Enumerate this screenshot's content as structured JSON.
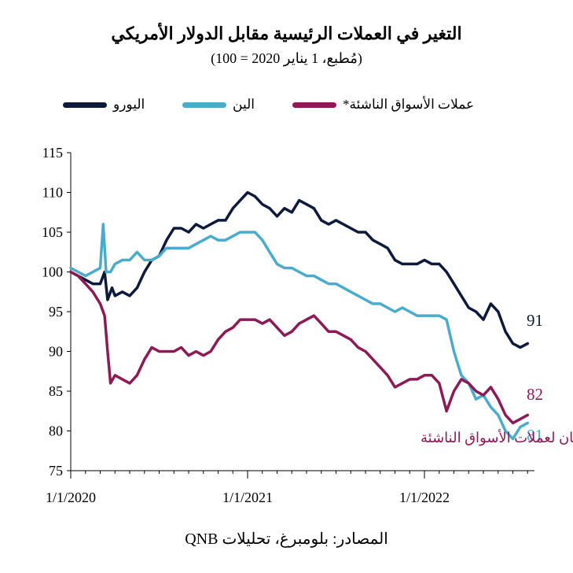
{
  "title": "التغير في العملات الرئيسية مقابل الدولار الأمريكي",
  "subtitle": "(مُطبع، 1 يناير 2020 = 100)",
  "source": "المصادر: بلومبرغ، تحليلات QNB",
  "legend": [
    {
      "label": "اليورو",
      "color": "#0e1a3c"
    },
    {
      "label": "الين",
      "color": "#4aaccc"
    },
    {
      "label": "عملات الأسواق الناشئة*",
      "color": "#8b1a55"
    }
  ],
  "chart_data": {
    "type": "line",
    "ylim": [
      75,
      115
    ],
    "yticks": [
      "75",
      "80",
      "85",
      "90",
      "95",
      "100",
      "105",
      "110",
      "115"
    ],
    "xticks": [
      {
        "label": "1/1/2020",
        "t": 0
      },
      {
        "label": "1/1/2021",
        "t": 12
      },
      {
        "label": "1/1/2022",
        "t": 24
      }
    ],
    "xlim_months": [
      0,
      31
    ],
    "note": "*مؤشر جي بي مورغان لعملات الأسواق الناشئة",
    "series": [
      {
        "name": "اليورو",
        "color": "#0e1a3c",
        "end_label": "91",
        "points": [
          [
            0,
            100
          ],
          [
            0.5,
            99.5
          ],
          [
            1,
            99
          ],
          [
            1.5,
            98.5
          ],
          [
            2,
            98.5
          ],
          [
            2.3,
            100
          ],
          [
            2.5,
            96.5
          ],
          [
            2.8,
            98
          ],
          [
            3,
            97
          ],
          [
            3.5,
            97.5
          ],
          [
            4,
            97
          ],
          [
            4.5,
            98
          ],
          [
            5,
            100
          ],
          [
            5.5,
            101.5
          ],
          [
            6,
            102
          ],
          [
            6.5,
            104
          ],
          [
            7,
            105.5
          ],
          [
            7.5,
            105.5
          ],
          [
            8,
            105
          ],
          [
            8.5,
            106
          ],
          [
            9,
            105.5
          ],
          [
            9.5,
            106
          ],
          [
            10,
            106.5
          ],
          [
            10.5,
            106.5
          ],
          [
            11,
            108
          ],
          [
            11.5,
            109
          ],
          [
            12,
            110
          ],
          [
            12.5,
            109.5
          ],
          [
            13,
            108.5
          ],
          [
            13.5,
            108
          ],
          [
            14,
            107
          ],
          [
            14.5,
            108
          ],
          [
            15,
            107.5
          ],
          [
            15.5,
            109
          ],
          [
            16,
            108.5
          ],
          [
            16.5,
            108
          ],
          [
            17,
            106.5
          ],
          [
            17.5,
            106
          ],
          [
            18,
            106.5
          ],
          [
            18.5,
            106
          ],
          [
            19,
            105.5
          ],
          [
            19.5,
            105
          ],
          [
            20,
            105
          ],
          [
            20.5,
            104
          ],
          [
            21,
            103.5
          ],
          [
            21.5,
            103
          ],
          [
            22,
            101.5
          ],
          [
            22.5,
            101
          ],
          [
            23,
            101
          ],
          [
            23.5,
            101
          ],
          [
            24,
            101.5
          ],
          [
            24.5,
            101
          ],
          [
            25,
            101
          ],
          [
            25.5,
            100
          ],
          [
            26,
            98.5
          ],
          [
            26.5,
            97
          ],
          [
            27,
            95.5
          ],
          [
            27.5,
            95
          ],
          [
            28,
            94
          ],
          [
            28.5,
            96
          ],
          [
            29,
            95
          ],
          [
            29.5,
            92.5
          ],
          [
            30,
            91
          ],
          [
            30.5,
            90.5
          ],
          [
            31,
            91
          ]
        ]
      },
      {
        "name": "الين",
        "color": "#4aaccc",
        "end_label": "81",
        "points": [
          [
            0,
            100.5
          ],
          [
            0.5,
            100
          ],
          [
            1,
            99.5
          ],
          [
            1.5,
            100
          ],
          [
            2,
            100.5
          ],
          [
            2.2,
            106
          ],
          [
            2.4,
            100
          ],
          [
            2.7,
            100
          ],
          [
            3,
            101
          ],
          [
            3.5,
            101.5
          ],
          [
            4,
            101.5
          ],
          [
            4.5,
            102.5
          ],
          [
            5,
            101.5
          ],
          [
            5.5,
            101.5
          ],
          [
            6,
            102
          ],
          [
            6.5,
            103
          ],
          [
            7,
            103
          ],
          [
            7.5,
            103
          ],
          [
            8,
            103
          ],
          [
            8.5,
            103.5
          ],
          [
            9,
            104
          ],
          [
            9.5,
            104.5
          ],
          [
            10,
            104
          ],
          [
            10.5,
            104
          ],
          [
            11,
            104.5
          ],
          [
            11.5,
            105
          ],
          [
            12,
            105
          ],
          [
            12.5,
            105
          ],
          [
            13,
            104
          ],
          [
            13.5,
            102.5
          ],
          [
            14,
            101
          ],
          [
            14.5,
            100.5
          ],
          [
            15,
            100.5
          ],
          [
            15.5,
            100
          ],
          [
            16,
            99.5
          ],
          [
            16.5,
            99.5
          ],
          [
            17,
            99
          ],
          [
            17.5,
            98.5
          ],
          [
            18,
            98.5
          ],
          [
            18.5,
            98
          ],
          [
            19,
            97.5
          ],
          [
            19.5,
            97
          ],
          [
            20,
            96.5
          ],
          [
            20.5,
            96
          ],
          [
            21,
            96
          ],
          [
            21.5,
            95.5
          ],
          [
            22,
            95
          ],
          [
            22.5,
            95.5
          ],
          [
            23,
            95
          ],
          [
            23.5,
            94.5
          ],
          [
            24,
            94.5
          ],
          [
            24.5,
            94.5
          ],
          [
            25,
            94.5
          ],
          [
            25.5,
            94
          ],
          [
            26,
            90
          ],
          [
            26.5,
            87
          ],
          [
            27,
            86
          ],
          [
            27.5,
            84
          ],
          [
            28,
            84.5
          ],
          [
            28.5,
            83
          ],
          [
            29,
            82
          ],
          [
            29.5,
            80
          ],
          [
            30,
            79
          ],
          [
            30.5,
            80.5
          ],
          [
            31,
            81
          ]
        ]
      },
      {
        "name": "عملات الأسواق الناشئة*",
        "color": "#8b1a55",
        "end_label": "82",
        "points": [
          [
            0,
            100
          ],
          [
            0.5,
            99.5
          ],
          [
            1,
            98.5
          ],
          [
            1.5,
            97.5
          ],
          [
            2,
            96
          ],
          [
            2.3,
            94.5
          ],
          [
            2.5,
            90
          ],
          [
            2.7,
            86
          ],
          [
            3,
            87
          ],
          [
            3.5,
            86.5
          ],
          [
            4,
            86
          ],
          [
            4.5,
            87
          ],
          [
            5,
            89
          ],
          [
            5.5,
            90.5
          ],
          [
            6,
            90
          ],
          [
            6.5,
            90
          ],
          [
            7,
            90
          ],
          [
            7.5,
            90.5
          ],
          [
            8,
            89.5
          ],
          [
            8.5,
            90
          ],
          [
            9,
            89.5
          ],
          [
            9.5,
            90
          ],
          [
            10,
            91.5
          ],
          [
            10.5,
            92.5
          ],
          [
            11,
            93
          ],
          [
            11.5,
            94
          ],
          [
            12,
            94
          ],
          [
            12.5,
            94
          ],
          [
            13,
            93.5
          ],
          [
            13.5,
            94
          ],
          [
            14,
            93
          ],
          [
            14.5,
            92
          ],
          [
            15,
            92.5
          ],
          [
            15.5,
            93.5
          ],
          [
            16,
            94
          ],
          [
            16.5,
            94.5
          ],
          [
            17,
            93.5
          ],
          [
            17.5,
            92.5
          ],
          [
            18,
            92.5
          ],
          [
            18.5,
            92
          ],
          [
            19,
            91.5
          ],
          [
            19.5,
            90.5
          ],
          [
            20,
            90
          ],
          [
            20.5,
            89
          ],
          [
            21,
            88
          ],
          [
            21.5,
            87
          ],
          [
            22,
            85.5
          ],
          [
            22.5,
            86
          ],
          [
            23,
            86.5
          ],
          [
            23.5,
            86.5
          ],
          [
            24,
            87
          ],
          [
            24.5,
            87
          ],
          [
            25,
            86
          ],
          [
            25.5,
            82.5
          ],
          [
            26,
            85
          ],
          [
            26.5,
            86.5
          ],
          [
            27,
            86
          ],
          [
            27.5,
            85
          ],
          [
            28,
            84.5
          ],
          [
            28.5,
            85.5
          ],
          [
            29,
            84
          ],
          [
            29.5,
            82
          ],
          [
            30,
            81
          ],
          [
            30.5,
            81.5
          ],
          [
            31,
            82
          ]
        ]
      }
    ]
  }
}
